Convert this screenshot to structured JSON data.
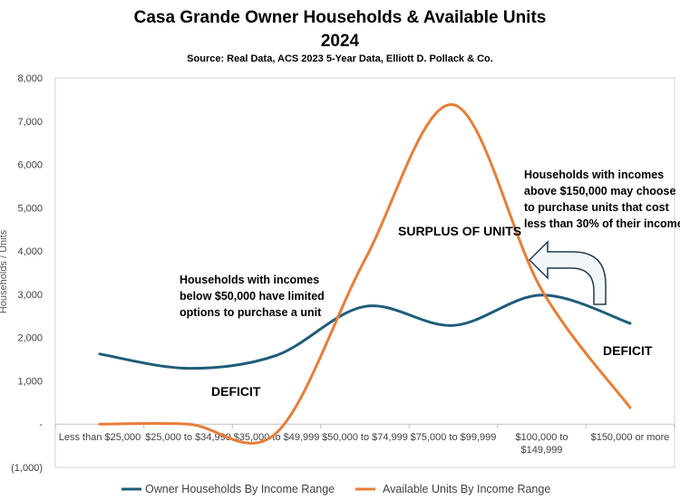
{
  "chart_data": {
    "type": "line",
    "title": "Casa Grande Owner Households & Available Units",
    "title_year": "2024",
    "subtitle": "Source: Real Data, ACS 2023 5-Year Data, Elliott D. Pollack & Co.",
    "ylabel": "Households / Units",
    "xlabel": "",
    "ylim": [
      -1000,
      8000
    ],
    "yticks": [
      {
        "value": 8000,
        "label": "8,000"
      },
      {
        "value": 7000,
        "label": "7,000"
      },
      {
        "value": 6000,
        "label": "6,000"
      },
      {
        "value": 5000,
        "label": "5,000"
      },
      {
        "value": 4000,
        "label": "4,000"
      },
      {
        "value": 3000,
        "label": "3,000"
      },
      {
        "value": 2000,
        "label": "2,000"
      },
      {
        "value": 1000,
        "label": "1,000"
      },
      {
        "value": 0,
        "label": "-"
      },
      {
        "value": -1000,
        "label": "(1,000)"
      }
    ],
    "categories": [
      "Less than $25,000",
      "$25,000 to $34,999",
      "$35,000 to $49,999",
      "$50,000 to $74,999",
      "$75,000 to $99,999",
      "$100,000 to $149,999",
      "$150,000 or more"
    ],
    "category_lines": [
      [
        "Less than $25,000"
      ],
      [
        "$25,000 to $34,999"
      ],
      [
        "$35,000 to $49,999"
      ],
      [
        "$50,000 to $74,999"
      ],
      [
        "$75,000 to $99,999"
      ],
      [
        "$100,000 to",
        "$149,999"
      ],
      [
        "$150,000 or more"
      ]
    ],
    "series": [
      {
        "name": "Owner Households By Income Range",
        "color": "#1f5c7a",
        "values": [
          1620,
          1290,
          1590,
          2720,
          2280,
          2980,
          2330
        ]
      },
      {
        "name": "Available Units By Income Range",
        "color": "#e87d37",
        "values": [
          0,
          0,
          -200,
          3800,
          7380,
          3100,
          380
        ]
      }
    ],
    "annotations": [
      {
        "id": "limited",
        "lines": [
          "Households with incomes",
          "below $50,000 have limited",
          "options to purchase a unit"
        ]
      },
      {
        "id": "deficit-left",
        "lines": [
          "DEFICIT"
        ]
      },
      {
        "id": "surplus",
        "lines": [
          "SURPLUS OF UNITS"
        ]
      },
      {
        "id": "above150",
        "lines": [
          "Households with incomes",
          "above $150,000 may choose",
          "to purchase units that cost",
          "less than 30% of their income"
        ]
      },
      {
        "id": "deficit-right",
        "lines": [
          "DEFICIT"
        ]
      }
    ],
    "legend_position": "bottom",
    "grid": false
  }
}
